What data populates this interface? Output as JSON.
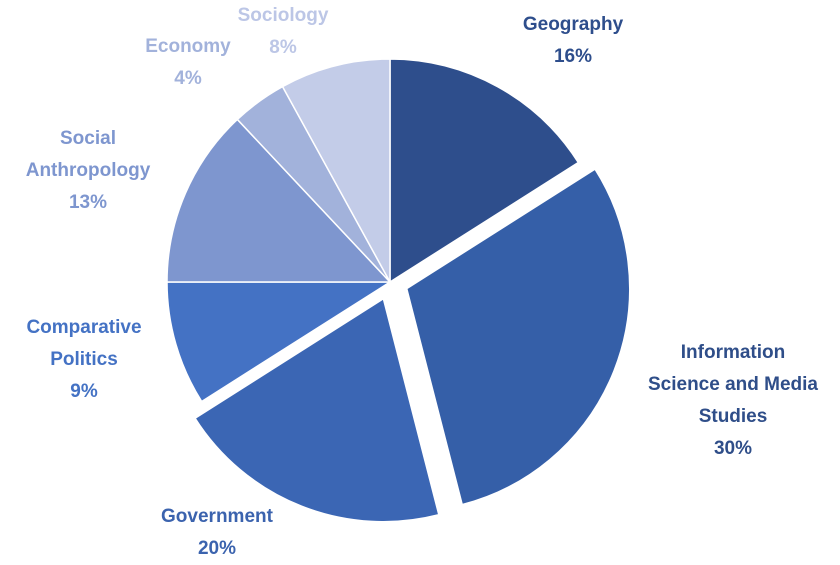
{
  "chart_data": {
    "type": "pie",
    "title": "",
    "start_angle_deg": 0,
    "direction": "clockwise",
    "slices": [
      {
        "label": [
          "Geography"
        ],
        "value": 16,
        "value_label": "16%",
        "color": "#2E4E8C",
        "label_color": "#2E4E8C",
        "exploded": false
      },
      {
        "label": [
          "Information",
          "Science and Media",
          "Studies"
        ],
        "value": 30,
        "value_label": "30%",
        "color": "#355FA8",
        "label_color": "#2F4E89",
        "exploded": true
      },
      {
        "label": [
          "Government"
        ],
        "value": 20,
        "value_label": "20%",
        "color": "#3B66B4",
        "label_color": "#3B63AE",
        "exploded": true
      },
      {
        "label": [
          "Comparative",
          "Politics"
        ],
        "value": 9,
        "value_label": "9%",
        "color": "#4472C4",
        "label_color": "#4472C4",
        "exploded": false
      },
      {
        "label": [
          "Social",
          "Anthropology"
        ],
        "value": 13,
        "value_label": "13%",
        "color": "#7E96CF",
        "label_color": "#7E96CF",
        "exploded": false
      },
      {
        "label": [
          "Economy"
        ],
        "value": 4,
        "value_label": "4%",
        "color": "#A2B2DB",
        "label_color": "#A2B2DB",
        "exploded": false
      },
      {
        "label": [
          "Sociology"
        ],
        "value": 8,
        "value_label": "8%",
        "color": "#C3CCE8",
        "label_color": "#BCC6E6",
        "exploded": false
      }
    ]
  }
}
